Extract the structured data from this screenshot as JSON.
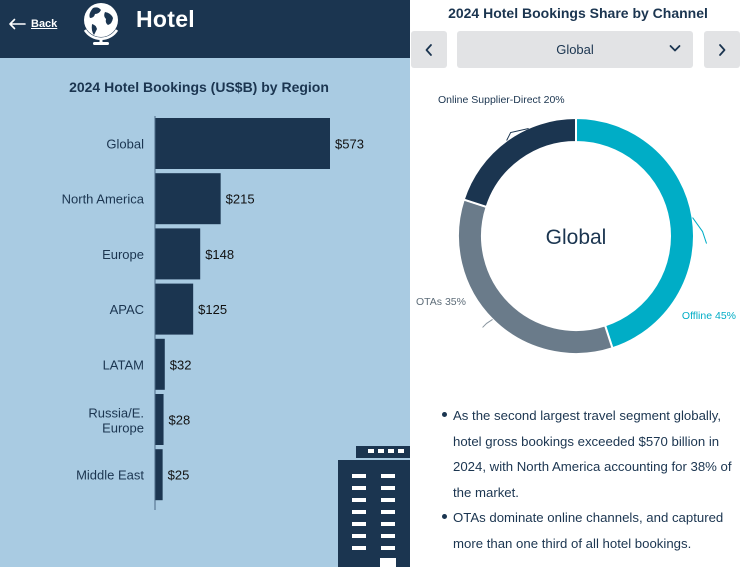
{
  "header": {
    "back_label": "Back",
    "title": "Hotel",
    "icons": {
      "back": "arrow-left-icon",
      "brand": "globe-icon"
    }
  },
  "colors": {
    "navy": "#1b3550",
    "panel_blue": "#a9cbe2",
    "teal": "#00adc6",
    "slate": "#6a7b8a",
    "button_gray": "#e2e3e5"
  },
  "chart_data": [
    {
      "type": "bar",
      "orientation": "horizontal",
      "title": "2024 Hotel Bookings (US$B) by Region",
      "categories": [
        "Global",
        "North America",
        "Europe",
        "APAC",
        "LATAM",
        "Russia/E. Europe",
        "Middle East"
      ],
      "values": [
        573,
        215,
        148,
        125,
        32,
        28,
        25
      ],
      "value_labels": [
        "$573",
        "$215",
        "$148",
        "$125",
        "$32",
        "$28",
        "$25"
      ],
      "xlim": [
        0,
        573
      ],
      "grid": false,
      "bar_color": "#1b3550"
    },
    {
      "type": "pie",
      "style": "donut",
      "title": "2024 Hotel Bookings Share by Channel",
      "center_label": "Global",
      "categories": [
        "Offline",
        "OTAs",
        "Online Supplier-Direct"
      ],
      "values": [
        45,
        35,
        20
      ],
      "labels": [
        "Offline 45%",
        "OTAs 35%",
        "Online Supplier-Direct 20%"
      ],
      "colors": [
        "#00adc6",
        "#6a7b8a",
        "#1b3550"
      ]
    }
  ],
  "selector": {
    "value": "Global",
    "icons": {
      "prev": "chevron-left-icon",
      "next": "chevron-right-icon",
      "dropdown": "chevron-down-icon"
    }
  },
  "bullets": [
    "As the second largest travel segment globally, hotel gross bookings exceeded $570 billion in 2024, with North America accounting for 38% of the market.",
    "OTAs dominate online channels, and captured more than one third of all hotel bookings."
  ]
}
